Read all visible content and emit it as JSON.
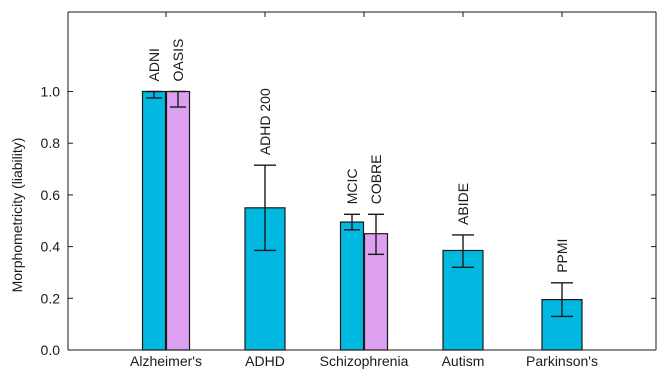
{
  "chart_data": {
    "type": "bar",
    "title": "",
    "xlabel": "",
    "ylabel": "Morphometricity (liability)",
    "ylim": [
      0,
      1.3
    ],
    "yticks": [
      0.0,
      0.2,
      0.4,
      0.6,
      0.8,
      1.0
    ],
    "yticklabels": [
      "0.0",
      "0.2",
      "0.4",
      "0.6",
      "0.8",
      "1.0"
    ],
    "grid": false,
    "categories": [
      "Alzheimer's",
      "ADHD",
      "Schizophrenia",
      "Autism",
      "Parkinson's"
    ],
    "bars": [
      {
        "category": "Alzheimer's",
        "label": "ADNI",
        "value": 1.0,
        "err_low": 0.975,
        "err_high": 1.0,
        "color": "#00b8e0"
      },
      {
        "category": "Alzheimer's",
        "label": "OASIS",
        "value": 1.0,
        "err_low": 0.94,
        "err_high": 1.0,
        "color": "#dda0f0"
      },
      {
        "category": "ADHD",
        "label": "ADHD 200",
        "value": 0.55,
        "err_low": 0.385,
        "err_high": 0.715,
        "color": "#00b8e0"
      },
      {
        "category": "Schizophrenia",
        "label": "MCIC",
        "value": 0.495,
        "err_low": 0.465,
        "err_high": 0.525,
        "color": "#00b8e0"
      },
      {
        "category": "Schizophrenia",
        "label": "COBRE",
        "value": 0.45,
        "err_low": 0.37,
        "err_high": 0.525,
        "color": "#dda0f0"
      },
      {
        "category": "Autism",
        "label": "ABIDE",
        "value": 0.385,
        "err_low": 0.32,
        "err_high": 0.445,
        "color": "#00b8e0"
      },
      {
        "category": "Parkinson's",
        "label": "PPMI",
        "value": 0.195,
        "err_low": 0.13,
        "err_high": 0.26,
        "color": "#00b8e0"
      }
    ]
  }
}
